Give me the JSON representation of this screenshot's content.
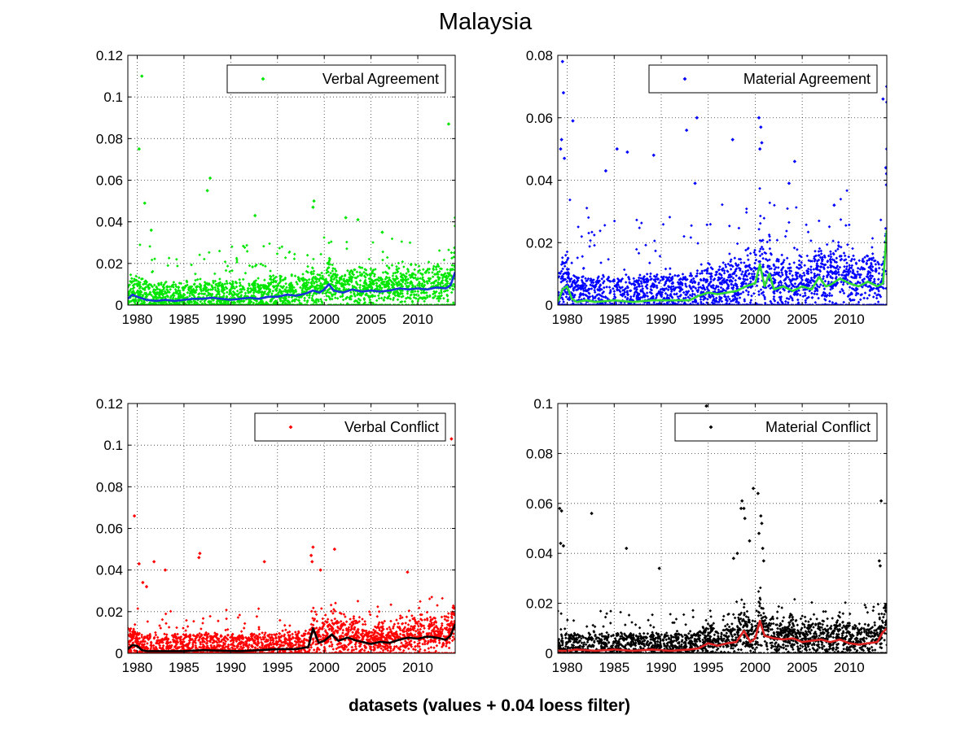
{
  "figure": {
    "title": "Malaysia",
    "xlabel": "datasets (values + 0.04 loess filter)"
  },
  "chart_data": [
    {
      "type": "scatter",
      "panel": "top-left",
      "legend": "Verbal Agreement",
      "legend_placement": "top-right",
      "grid": true,
      "xlim": [
        1979,
        2014
      ],
      "ylim": [
        0,
        0.12
      ],
      "xticks": [
        1980,
        1985,
        1990,
        1995,
        2000,
        2005,
        2010
      ],
      "xtick_labels": [
        "1980",
        "1985",
        "1990",
        "1995",
        "2000",
        "2005",
        "2010"
      ],
      "yticks": [
        0,
        0.02,
        0.04,
        0.06,
        0.08,
        0.1,
        0.12
      ],
      "ytick_labels": [
        "0",
        "0.02",
        "0.04",
        "0.06",
        "0.08",
        "0.1",
        "0.12"
      ],
      "point_color": "#00e600",
      "line_color": "#1a33d9",
      "band": {
        "lo": 0.0,
        "hi": 0.012,
        "spread": 0.026
      },
      "outliers": [
        [
          1980.5,
          0.11
        ],
        [
          1980.2,
          0.075
        ],
        [
          1980.8,
          0.049
        ],
        [
          1987.8,
          0.061
        ],
        [
          1987.5,
          0.055
        ],
        [
          1992.6,
          0.043
        ],
        [
          1998.9,
          0.05
        ],
        [
          1998.8,
          0.047
        ],
        [
          2002.3,
          0.042
        ],
        [
          2003.6,
          0.041
        ],
        [
          2013.3,
          0.087
        ],
        [
          2014.0,
          0.042
        ],
        [
          2014.0,
          0.038
        ],
        [
          1981.5,
          0.036
        ],
        [
          2006.2,
          0.035
        ]
      ],
      "loess": {
        "x": [
          1979,
          1979.5,
          1980,
          1981,
          1982,
          1983,
          1984,
          1985,
          1986,
          1987,
          1988,
          1989,
          1990,
          1991,
          1992,
          1993,
          1994,
          1995,
          1996,
          1997,
          1998,
          1998.8,
          1999.5,
          2000,
          2000.5,
          2001,
          2002,
          2003,
          2004,
          2005,
          2006,
          2007,
          2008,
          2009,
          2010,
          2011,
          2012,
          2013,
          2013.5,
          2014
        ],
        "y": [
          0.003,
          0.005,
          0.004,
          0.0025,
          0.002,
          0.0025,
          0.002,
          0.0025,
          0.003,
          0.003,
          0.0035,
          0.003,
          0.0025,
          0.003,
          0.0035,
          0.003,
          0.004,
          0.004,
          0.005,
          0.0045,
          0.0055,
          0.007,
          0.006,
          0.0075,
          0.01,
          0.007,
          0.006,
          0.0075,
          0.0065,
          0.007,
          0.0065,
          0.007,
          0.008,
          0.0075,
          0.008,
          0.0075,
          0.0085,
          0.008,
          0.0095,
          0.016
        ]
      }
    },
    {
      "type": "scatter",
      "panel": "top-right",
      "legend": "Material Agreement",
      "legend_placement": "top-right",
      "grid": true,
      "xlim": [
        1979,
        2014
      ],
      "ylim": [
        0,
        0.08
      ],
      "xticks": [
        1980,
        1985,
        1990,
        1995,
        2000,
        2005,
        2010
      ],
      "xtick_labels": [
        "1980",
        "1985",
        "1990",
        "1995",
        "2000",
        "2005",
        "2010"
      ],
      "yticks": [
        0,
        0.02,
        0.04,
        0.06,
        0.08
      ],
      "ytick_labels": [
        "0",
        "0.02",
        "0.04",
        "0.06",
        "0.08"
      ],
      "point_color": "#0000ff",
      "line_color": "#33dd33",
      "band": {
        "lo": 0.0,
        "hi": 0.012,
        "spread": 0.03
      },
      "outliers": [
        [
          1979.5,
          0.078
        ],
        [
          1979.6,
          0.068
        ],
        [
          1980.6,
          0.059
        ],
        [
          1979.4,
          0.053
        ],
        [
          1979.3,
          0.05
        ],
        [
          1979.7,
          0.047
        ],
        [
          1984.1,
          0.043
        ],
        [
          1985.3,
          0.05
        ],
        [
          1986.4,
          0.049
        ],
        [
          1989.2,
          0.048
        ],
        [
          1992.7,
          0.056
        ],
        [
          1993.8,
          0.06
        ],
        [
          1993.6,
          0.039
        ],
        [
          1997.6,
          0.053
        ],
        [
          2000.4,
          0.06
        ],
        [
          2000.6,
          0.057
        ],
        [
          2000.7,
          0.052
        ],
        [
          2000.5,
          0.05
        ],
        [
          2004.2,
          0.046
        ],
        [
          2013.6,
          0.066
        ],
        [
          2014.0,
          0.07
        ],
        [
          2014.0,
          0.065
        ],
        [
          2014.0,
          0.05
        ],
        [
          2013.9,
          0.044
        ],
        [
          2014.0,
          0.042
        ],
        [
          2003.6,
          0.039
        ],
        [
          2008.4,
          0.032
        ]
      ],
      "loess": {
        "x": [
          1979,
          1979.5,
          1980,
          1980.5,
          1981,
          1982,
          1983,
          1985,
          1987,
          1989,
          1991,
          1993,
          1994,
          1995,
          1996,
          1997,
          1998,
          1999,
          2000,
          2000.5,
          2001,
          2001.5,
          2002,
          2003,
          2004,
          2005,
          2006,
          2006.8,
          2007.5,
          2008,
          2009,
          2010,
          2011,
          2012,
          2013,
          2013.6,
          2014
        ],
        "y": [
          0.001,
          0.005,
          0.006,
          0.002,
          0.001,
          0.0015,
          0.001,
          0.0015,
          0.001,
          0.0015,
          0.0015,
          0.0015,
          0.003,
          0.004,
          0.0035,
          0.004,
          0.0045,
          0.006,
          0.007,
          0.013,
          0.006,
          0.01,
          0.005,
          0.006,
          0.0045,
          0.006,
          0.005,
          0.009,
          0.006,
          0.0065,
          0.0085,
          0.007,
          0.006,
          0.0075,
          0.006,
          0.007,
          0.024
        ]
      }
    },
    {
      "type": "scatter",
      "panel": "bottom-left",
      "legend": "Verbal Conflict",
      "legend_placement": "top-right",
      "grid": true,
      "xlim": [
        1979,
        2014
      ],
      "ylim": [
        0,
        0.12
      ],
      "xticks": [
        1980,
        1985,
        1990,
        1995,
        2000,
        2005,
        2010
      ],
      "xtick_labels": [
        "1980",
        "1985",
        "1990",
        "1995",
        "2000",
        "2005",
        "2010"
      ],
      "yticks": [
        0,
        0.02,
        0.04,
        0.06,
        0.08,
        0.1,
        0.12
      ],
      "ytick_labels": [
        "0",
        "0.02",
        "0.04",
        "0.06",
        "0.08",
        "0.1",
        "0.12"
      ],
      "point_color": "#ff0000",
      "line_color": "#000000",
      "band": {
        "lo": 0.0,
        "hi": 0.012,
        "spread": 0.02
      },
      "outliers": [
        [
          1979.7,
          0.066
        ],
        [
          1980.2,
          0.043
        ],
        [
          1981.8,
          0.044
        ],
        [
          1983.0,
          0.04
        ],
        [
          1986.7,
          0.048
        ],
        [
          1986.6,
          0.046
        ],
        [
          1993.6,
          0.044
        ],
        [
          1998.8,
          0.051
        ],
        [
          1998.6,
          0.047
        ],
        [
          1998.7,
          0.044
        ],
        [
          2001.1,
          0.05
        ],
        [
          1999.6,
          0.04
        ],
        [
          2008.9,
          0.039
        ],
        [
          2013.6,
          0.103
        ],
        [
          1980.6,
          0.034
        ],
        [
          1981.0,
          0.032
        ]
      ],
      "loess": {
        "x": [
          1979,
          1979.5,
          1980,
          1980.5,
          1981,
          1983,
          1985,
          1987,
          1989,
          1991,
          1993,
          1995,
          1997,
          1998.3,
          1998.8,
          1999.4,
          2000,
          2000.8,
          2001.5,
          2002.5,
          2003.5,
          2005,
          2006,
          2007,
          2008,
          2009,
          2010,
          2011,
          2012,
          2013,
          2013.5,
          2014
        ],
        "y": [
          0.002,
          0.004,
          0.0035,
          0.0015,
          0.001,
          0.001,
          0.001,
          0.0015,
          0.0012,
          0.001,
          0.0015,
          0.002,
          0.002,
          0.003,
          0.012,
          0.005,
          0.006,
          0.009,
          0.006,
          0.0075,
          0.006,
          0.0045,
          0.0055,
          0.005,
          0.0065,
          0.0075,
          0.007,
          0.008,
          0.0075,
          0.0065,
          0.0085,
          0.014
        ]
      }
    },
    {
      "type": "scatter",
      "panel": "bottom-right",
      "legend": "Material Conflict",
      "legend_placement": "top-right",
      "grid": true,
      "xlim": [
        1979,
        2014
      ],
      "ylim": [
        0,
        0.1
      ],
      "xticks": [
        1980,
        1985,
        1990,
        1995,
        2000,
        2005,
        2010
      ],
      "xtick_labels": [
        "1980",
        "1985",
        "1990",
        "1995",
        "2000",
        "2005",
        "2010"
      ],
      "yticks": [
        0,
        0.02,
        0.04,
        0.06,
        0.08,
        0.1
      ],
      "ytick_labels": [
        "0",
        "0.02",
        "0.04",
        "0.06",
        "0.08",
        "0.1"
      ],
      "point_color": "#000000",
      "line_color": "#dd2222",
      "band": {
        "lo": 0.0,
        "hi": 0.01,
        "spread": 0.016
      },
      "outliers": [
        [
          1979.2,
          0.058
        ],
        [
          1979.4,
          0.057
        ],
        [
          1979.3,
          0.044
        ],
        [
          1979.6,
          0.043
        ],
        [
          1982.6,
          0.056
        ],
        [
          1986.3,
          0.042
        ],
        [
          1989.8,
          0.034
        ],
        [
          1994.8,
          0.099
        ],
        [
          1998.6,
          0.061
        ],
        [
          1998.5,
          0.058
        ],
        [
          1998.8,
          0.058
        ],
        [
          1998.9,
          0.054
        ],
        [
          1999.8,
          0.066
        ],
        [
          2000.3,
          0.064
        ],
        [
          2000.6,
          0.055
        ],
        [
          2000.7,
          0.052
        ],
        [
          2000.4,
          0.048
        ],
        [
          2013.4,
          0.061
        ],
        [
          2013.2,
          0.037
        ],
        [
          2013.3,
          0.035
        ],
        [
          1997.7,
          0.038
        ],
        [
          1998.1,
          0.04
        ],
        [
          1999.4,
          0.045
        ],
        [
          2000.8,
          0.042
        ],
        [
          2000.9,
          0.037
        ]
      ],
      "loess": {
        "x": [
          1979,
          1980,
          1981,
          1983,
          1985,
          1987,
          1989,
          1991,
          1993,
          1994,
          1995,
          1996,
          1997,
          1998,
          1998.8,
          1999.5,
          2000,
          2000.5,
          2001,
          2002,
          2003,
          2004,
          2005,
          2006,
          2007,
          2008,
          2009,
          2010,
          2011,
          2012,
          2013,
          2013.5,
          2014
        ],
        "y": [
          0.001,
          0.001,
          0.0015,
          0.001,
          0.0015,
          0.001,
          0.0015,
          0.001,
          0.0015,
          0.002,
          0.004,
          0.003,
          0.004,
          0.0045,
          0.009,
          0.0045,
          0.006,
          0.013,
          0.007,
          0.006,
          0.0055,
          0.006,
          0.0045,
          0.005,
          0.0055,
          0.0045,
          0.0055,
          0.004,
          0.0035,
          0.004,
          0.0045,
          0.008,
          0.01
        ]
      }
    }
  ]
}
